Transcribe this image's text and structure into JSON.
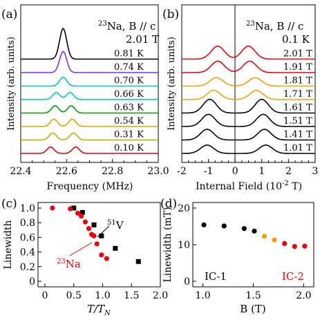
{
  "chart_data": [
    {
      "panel_label": "(a)",
      "type": "line",
      "xlabel": "Frequency (MHz)",
      "ylabel": "Intensity (arb. units)",
      "xlim": [
        22.4,
        23.0
      ],
      "xticks": [
        "22.4",
        "22.6",
        "22.8",
        "23.0"
      ],
      "annotation_nucleus_mass": "23",
      "annotation": "Na, B // c",
      "field": "2.01 T",
      "series": [
        {
          "name": "0.10 K",
          "color": "#e8000b",
          "peaks": [
            [
              22.53,
              0.55
            ],
            [
              22.64,
              0.55
            ]
          ]
        },
        {
          "name": "0.31 K",
          "color": "#c8a800",
          "peaks": [
            [
              22.54,
              0.6
            ],
            [
              22.63,
              0.6
            ]
          ]
        },
        {
          "name": "0.54 K",
          "color": "#d9a400",
          "peaks": [
            [
              22.545,
              0.62
            ],
            [
              22.625,
              0.62
            ]
          ]
        },
        {
          "name": "0.63 K",
          "color": "#009900",
          "peaks": [
            [
              22.55,
              0.62
            ],
            [
              22.62,
              0.62
            ]
          ]
        },
        {
          "name": "0.66 K",
          "color": "#00c4c4",
          "peaks": [
            [
              22.555,
              0.6
            ],
            [
              22.615,
              0.6
            ]
          ]
        },
        {
          "name": "0.70 K",
          "color": "#00bcd4",
          "peaks": [
            [
              22.585,
              0.75
            ]
          ]
        },
        {
          "name": "0.74 K",
          "color": "#8a2be2",
          "peaks": [
            [
              22.585,
              1.8
            ]
          ]
        },
        {
          "name": "0.81 K",
          "color": "#000000",
          "peaks": [
            [
              22.585,
              2.6
            ]
          ]
        }
      ]
    },
    {
      "panel_label": "(b)",
      "type": "line",
      "xlabel": "Internal Field (10",
      "xlabel_exponent": "-2",
      "xlabel_unit": " T)",
      "ylabel": "Intensity (arb. units)",
      "xlim": [
        -2,
        3
      ],
      "xticks": [
        "-2",
        "-1",
        "0",
        "1",
        "2",
        "3"
      ],
      "annotation_nucleus_mass": "23",
      "annotation": "Na, B // c",
      "temperature": "0.1 K",
      "series": [
        {
          "name": "1.01 T",
          "color": "#000000",
          "peaks": [
            [
              -1.05,
              0.55
            ],
            [
              1.15,
              0.55
            ]
          ]
        },
        {
          "name": "1.41 T",
          "color": "#000000",
          "peaks": [
            [
              -1.05,
              0.7
            ],
            [
              1.1,
              0.7
            ]
          ]
        },
        {
          "name": "1.51 T",
          "color": "#000000",
          "peaks": [
            [
              -1.0,
              0.8
            ],
            [
              1.05,
              0.8
            ]
          ]
        },
        {
          "name": "1.61 T",
          "color": "#000000",
          "peaks": [
            [
              -0.95,
              0.9
            ],
            [
              1.0,
              0.9
            ]
          ]
        },
        {
          "name": "1.71 T",
          "color": "#f0a010",
          "peaks": [
            [
              -0.8,
              0.6
            ],
            [
              0.8,
              0.6
            ]
          ]
        },
        {
          "name": "1.81 T",
          "color": "#f0a010",
          "peaks": [
            [
              -0.7,
              0.55
            ],
            [
              0.75,
              0.55
            ]
          ]
        },
        {
          "name": "1.91 T",
          "color": "#e8000b",
          "peaks": [
            [
              -0.65,
              0.75
            ],
            [
              0.55,
              0.75
            ]
          ]
        },
        {
          "name": "2.01 T",
          "color": "#e8000b",
          "peaks": [
            [
              -0.65,
              0.85
            ],
            [
              0.5,
              0.85
            ]
          ]
        }
      ]
    },
    {
      "panel_label": "(c)",
      "type": "scatter",
      "xlabel": "T/T",
      "xlabel_subscript": "N",
      "ylabel": "Linewidth",
      "xlim": [
        0,
        2.0
      ],
      "ylim": [
        0,
        1.0
      ],
      "xticks": [
        "0",
        "0.5",
        "1.0",
        "1.5",
        "2.0"
      ],
      "yticks": [
        "0",
        "0.2",
        "0.4",
        "0.6",
        "0.8",
        "1.0"
      ],
      "series": [
        {
          "name": "V",
          "mass_number": "51",
          "color": "#000000",
          "marker": "square",
          "points": [
            [
              0.5,
              1.0
            ],
            [
              0.65,
              0.94
            ],
            [
              0.85,
              0.77
            ],
            [
              0.98,
              0.62
            ],
            [
              1.22,
              0.45
            ],
            [
              1.62,
              0.27
            ]
          ]
        },
        {
          "name": "Na",
          "mass_number": "23",
          "color": "#e8000b",
          "marker": "circle",
          "points": [
            [
              0.13,
              1.0
            ],
            [
              0.44,
              0.99
            ],
            [
              0.57,
              0.93
            ],
            [
              0.63,
              0.89
            ],
            [
              0.7,
              0.81
            ],
            [
              0.76,
              0.72
            ],
            [
              0.81,
              0.64
            ],
            [
              0.85,
              0.62
            ],
            [
              0.9,
              0.51
            ],
            [
              0.98,
              0.36
            ],
            [
              1.07,
              0.31
            ]
          ]
        }
      ]
    },
    {
      "panel_label": "(d)",
      "type": "scatter",
      "xlabel": "B (T)",
      "ylabel": "Linewidth (mT)",
      "xlim": [
        0.9,
        2.1
      ],
      "ylim": [
        0,
        20
      ],
      "xticks": [
        "1.0",
        "1.5",
        "2.0"
      ],
      "yticks": [
        "0",
        "10",
        "20"
      ],
      "regions": [
        {
          "label": "IC-1",
          "color": "#000000"
        },
        {
          "label": "IC-2",
          "color": "#e8000b"
        }
      ],
      "points": [
        {
          "x": 1.01,
          "y": 15.4,
          "color": "#000000"
        },
        {
          "x": 1.21,
          "y": 15.1,
          "color": "#000000"
        },
        {
          "x": 1.41,
          "y": 14.4,
          "color": "#000000"
        },
        {
          "x": 1.51,
          "y": 13.7,
          "color": "#000000"
        },
        {
          "x": 1.61,
          "y": 12.3,
          "color": "#f0a010"
        },
        {
          "x": 1.71,
          "y": 11.3,
          "color": "#f0a010"
        },
        {
          "x": 1.81,
          "y": 10.3,
          "color": "#e8000b"
        },
        {
          "x": 1.91,
          "y": 9.5,
          "color": "#e8000b"
        },
        {
          "x": 2.01,
          "y": 9.6,
          "color": "#e8000b"
        }
      ]
    }
  ]
}
